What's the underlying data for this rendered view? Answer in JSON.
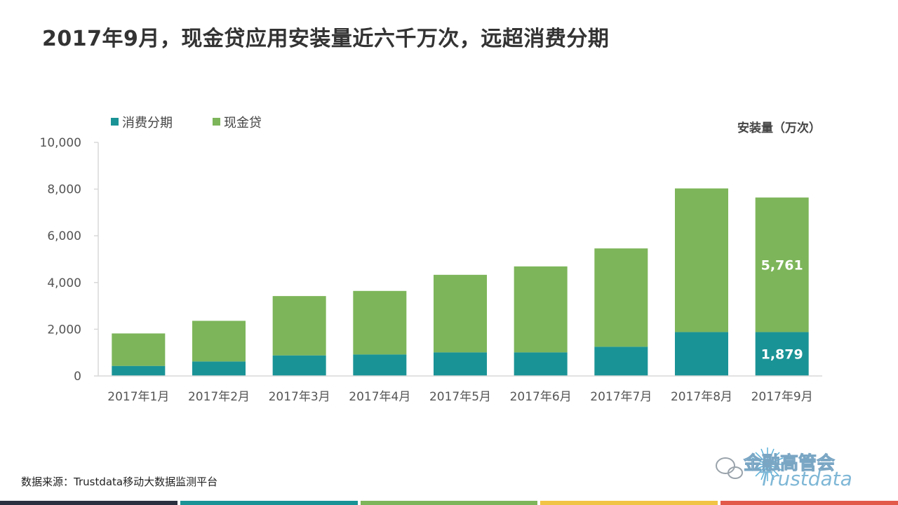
{
  "title": "2017年9月，现金贷应用安装量近六千万次，远超消费分期",
  "source": "数据来源：Trustdata移动大数据监测平台",
  "watermark": {
    "cn": "金融高管会",
    "en": "Trustdata"
  },
  "stripe_colors": [
    "#2b3040",
    "#1a9396",
    "#7db55a",
    "#f2c445",
    "#e2594a"
  ],
  "chart_data": {
    "type": "bar",
    "stacked": true,
    "unit_label": "安装量（万次）",
    "categories": [
      "2017年1月",
      "2017年2月",
      "2017年3月",
      "2017年4月",
      "2017年5月",
      "2017年6月",
      "2017年7月",
      "2017年8月",
      "2017年9月"
    ],
    "series": [
      {
        "name": "消费分期",
        "color": "#1a9396",
        "values": [
          430,
          620,
          880,
          920,
          1010,
          1010,
          1250,
          1879,
          1879
        ]
      },
      {
        "name": "现金贷",
        "color": "#7db55a",
        "values": [
          1390,
          1740,
          2540,
          2720,
          3320,
          3680,
          4210,
          6150,
          5761
        ]
      }
    ],
    "data_labels": [
      {
        "series": 0,
        "index": 8,
        "text": "1,879"
      },
      {
        "series": 1,
        "index": 8,
        "text": "5,761"
      }
    ],
    "yticks": [
      "0",
      "2,000",
      "4,000",
      "6,000",
      "8,000",
      "10,000"
    ],
    "ylim": [
      0,
      10000
    ],
    "legend_position": "top-left"
  }
}
